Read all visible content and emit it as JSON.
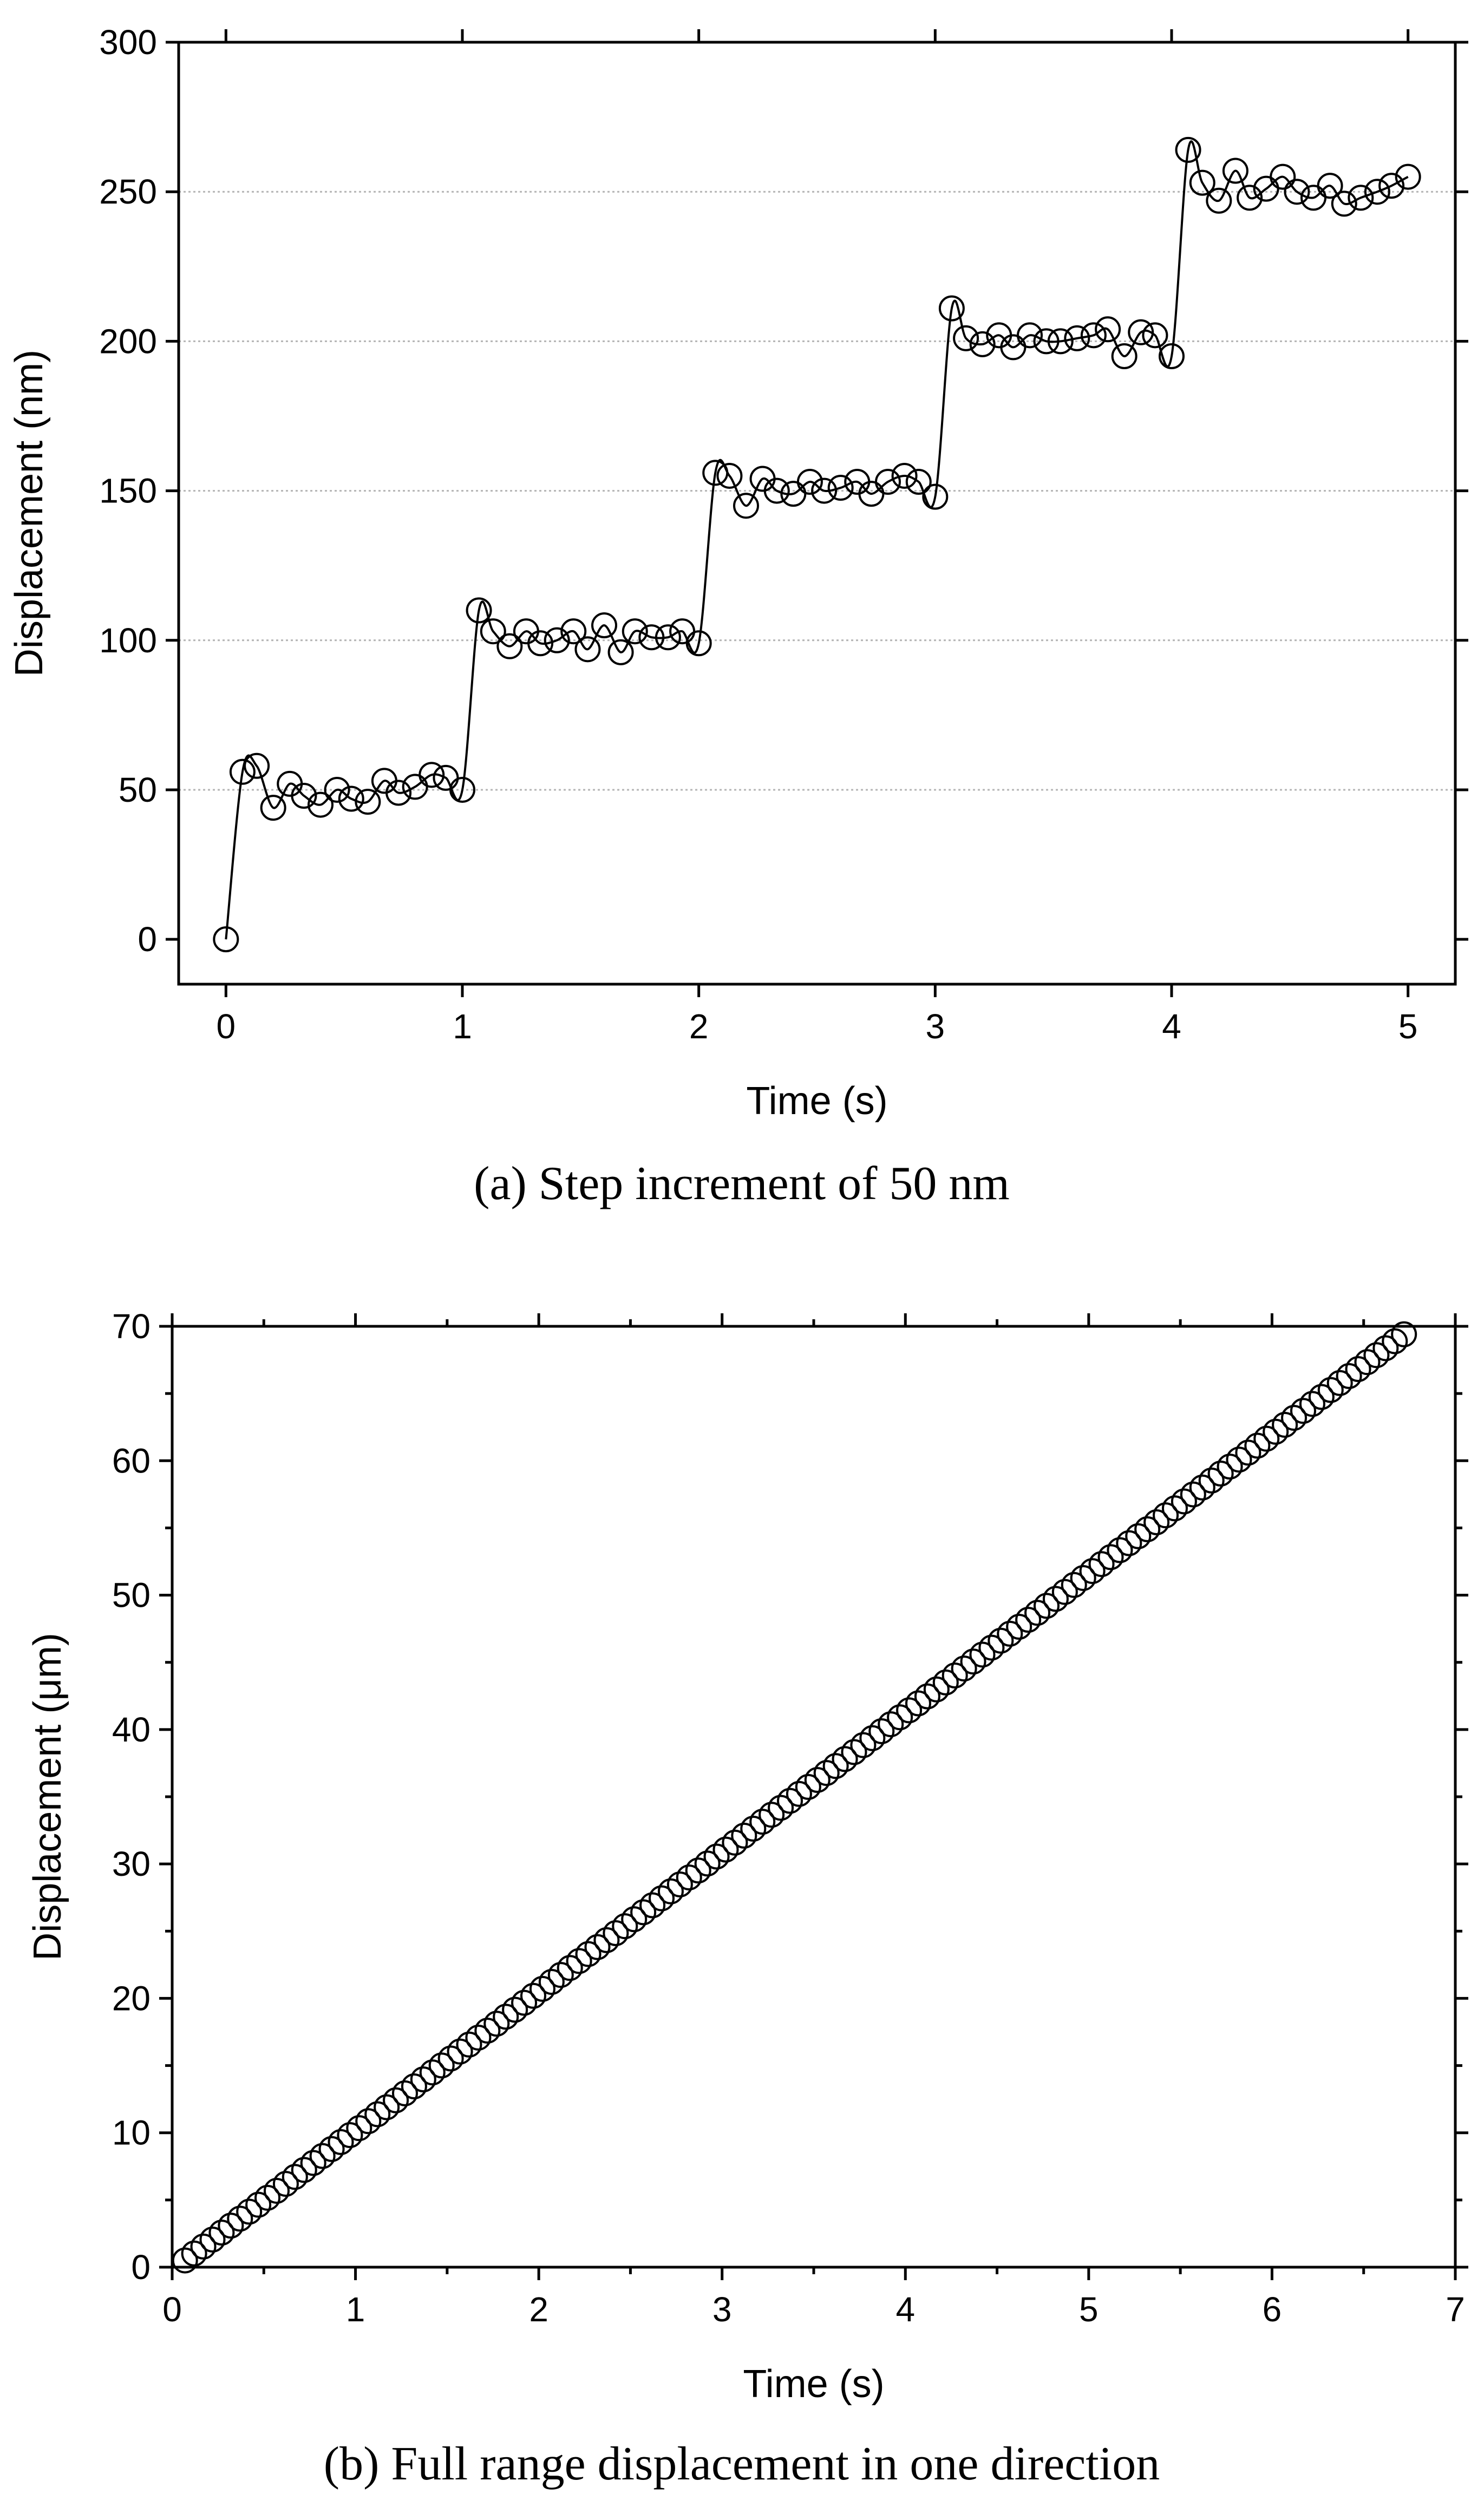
{
  "chart_data": [
    {
      "type": "scatter",
      "caption": "(a) Step increment of 50 nm",
      "xlabel": "Time (s)",
      "ylabel": "Displacement (nm)",
      "xlim": [
        -0.2,
        5.2
      ],
      "ylim": [
        -15,
        300
      ],
      "xticks": [
        "0",
        "1",
        "2",
        "3",
        "4",
        "5"
      ],
      "yticks": [
        "0",
        "50",
        "100",
        "150",
        "200",
        "250",
        "300"
      ],
      "grid": "horizontal dotted",
      "series": [
        {
          "style": "open circles with smoothed line",
          "x": [
            0,
            0.07,
            0.13,
            0.2,
            0.27,
            0.33,
            0.4,
            0.47,
            0.53,
            0.6,
            0.67,
            0.73,
            0.8,
            0.87,
            0.93,
            1.0,
            1.07,
            1.13,
            1.2,
            1.27,
            1.33,
            1.4,
            1.47,
            1.53,
            1.6,
            1.67,
            1.73,
            1.8,
            1.87,
            1.93,
            2.0,
            2.07,
            2.13,
            2.2,
            2.27,
            2.33,
            2.4,
            2.47,
            2.53,
            2.6,
            2.67,
            2.73,
            2.8,
            2.87,
            2.93,
            3.0,
            3.07,
            3.13,
            3.2,
            3.27,
            3.33,
            3.4,
            3.47,
            3.53,
            3.6,
            3.67,
            3.73,
            3.8,
            3.87,
            3.93,
            4.0,
            4.07,
            4.13,
            4.2,
            4.27,
            4.33,
            4.4,
            4.47,
            4.53,
            4.6,
            4.67,
            4.73,
            4.8,
            4.87,
            4.93,
            5.0
          ],
          "y": [
            0,
            56,
            58,
            44,
            52,
            48,
            45,
            50,
            47,
            46,
            53,
            49,
            51,
            55,
            54,
            50,
            110,
            103,
            98,
            103,
            99,
            100,
            103,
            97,
            105,
            96,
            103,
            101,
            101,
            103,
            99,
            156,
            155,
            145,
            154,
            150,
            149,
            153,
            150,
            151,
            153,
            149,
            153,
            155,
            153,
            148,
            211,
            201,
            199,
            202,
            198,
            202,
            200,
            200,
            201,
            202,
            204,
            195,
            203,
            202,
            195,
            264,
            253,
            247,
            257,
            248,
            251,
            255,
            250,
            248,
            252,
            246,
            248,
            250,
            252,
            255
          ]
        }
      ]
    },
    {
      "type": "scatter",
      "caption": "(b) Full range displacement in one direction",
      "xlabel": "Time (s)",
      "ylabel": "Displacement (μm)",
      "xlim": [
        0,
        7
      ],
      "ylim": [
        0,
        70
      ],
      "xticks": [
        "0",
        "1",
        "2",
        "3",
        "4",
        "5",
        "6",
        "7"
      ],
      "yticks": [
        "0",
        "10",
        "20",
        "30",
        "40",
        "50",
        "60",
        "70"
      ],
      "grid": "off",
      "series": [
        {
          "style": "open circles",
          "x_start": 0.07,
          "x_end": 6.7,
          "x_step": 0.05,
          "y_start": 0.5,
          "y_end": 69.2
        }
      ]
    }
  ]
}
